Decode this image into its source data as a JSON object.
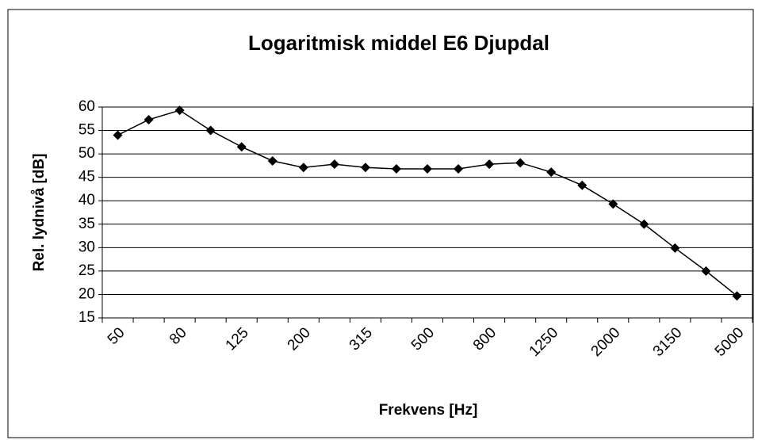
{
  "chart_data": {
    "type": "line",
    "title": "Logaritmisk middel E6 Djupdal",
    "x_label": "Frekvens [Hz]",
    "y_label": "Rel. lydnivå [dB]",
    "categories": [
      "50",
      null,
      "80",
      null,
      "125",
      null,
      "200",
      null,
      "315",
      null,
      "500",
      null,
      "800",
      null,
      "1250",
      null,
      "2000",
      null,
      "3150",
      null,
      "5000"
    ],
    "series": [
      {
        "name": "Logaritmisk middel",
        "color": "#000000",
        "values": [
          54,
          57.3,
          59.3,
          55,
          51.5,
          48.5,
          47.1,
          47.8,
          47.1,
          46.8,
          46.8,
          46.8,
          47.8,
          48.1,
          46.1,
          43.3,
          39.3,
          35,
          29.9,
          25,
          19.7
        ]
      }
    ],
    "ylim": [
      15,
      60
    ],
    "yticks": [
      15,
      20,
      25,
      30,
      35,
      40,
      45,
      50,
      55,
      60
    ],
    "grid": true
  }
}
